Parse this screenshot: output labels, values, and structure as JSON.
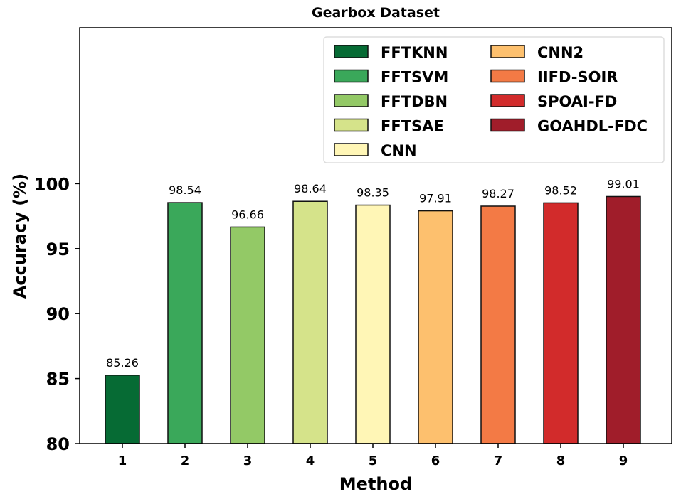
{
  "chart_data": {
    "type": "bar",
    "title": "Gearbox Dataset",
    "xlabel": "Method",
    "ylabel": "Accuracy (%)",
    "categories": [
      "1",
      "2",
      "3",
      "4",
      "5",
      "6",
      "7",
      "8",
      "9"
    ],
    "values": [
      85.26,
      98.54,
      96.66,
      98.64,
      98.35,
      97.91,
      98.27,
      98.52,
      99.01
    ],
    "data_labels": [
      "85.26",
      "98.54",
      "96.66",
      "98.64",
      "98.35",
      "97.91",
      "98.27",
      "98.52",
      "99.01"
    ],
    "series_names": [
      "FFTKNN",
      "FFTSVM",
      "FFTDBN",
      "FFTSAE",
      "CNN",
      "CNN2",
      "IIFD-SOIR",
      "SPOAI-FD",
      "GOAHDL-FDC"
    ],
    "colors": [
      "#066b34",
      "#3aa85a",
      "#93c966",
      "#d5e38a",
      "#fff6b6",
      "#fdc06e",
      "#f37a45",
      "#d22b2b",
      "#a01d2a"
    ],
    "ylim": [
      80,
      112
    ],
    "yticks": [
      80,
      85,
      90,
      95,
      100
    ],
    "grid": false,
    "legend": "top-right"
  }
}
